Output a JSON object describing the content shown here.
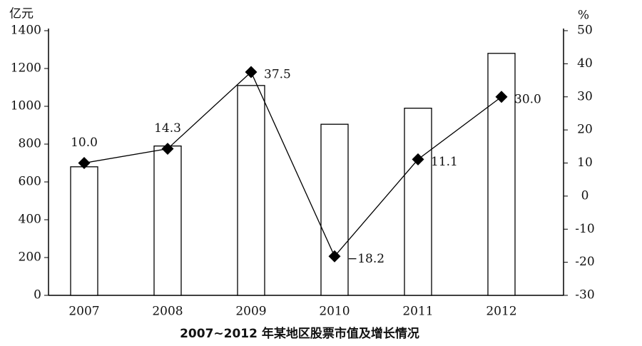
{
  "chart_data": {
    "type": "bar",
    "title": "2007~2012 年某地区股票市值及增长情况",
    "y_label": "亿元",
    "y2_label": "%",
    "categories": [
      "2007",
      "2008",
      "2009",
      "2010",
      "2011",
      "2012"
    ],
    "series": [
      {
        "type": "bar",
        "color": "#ffffff",
        "values": [
          680,
          790,
          1110,
          905,
          990,
          1280
        ]
      },
      {
        "type": "line",
        "axis": "y2",
        "color": "#000000",
        "values": [
          10.0,
          14.3,
          37.5,
          -18.2,
          11.1,
          30.0
        ],
        "value_labels": [
          "10.0",
          "14.3",
          "37.5",
          "−18.2",
          "11.1",
          "30.0"
        ]
      }
    ],
    "ylim": [
      0,
      1400
    ],
    "yticks": [
      0,
      200,
      400,
      600,
      800,
      1000,
      1200,
      1400
    ],
    "y2lim": [
      -30,
      50
    ],
    "y2ticks": [
      -30,
      -20,
      -10,
      0,
      10,
      20,
      30,
      40,
      50
    ],
    "grid": false
  }
}
